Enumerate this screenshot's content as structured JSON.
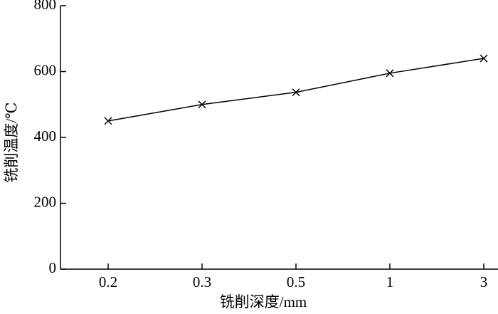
{
  "chart_data": {
    "type": "line",
    "x_label": "铣削深度/mm",
    "y_label": "铣削温度/℃",
    "categories": [
      "0.2",
      "0.3",
      "0.5",
      "1",
      "3"
    ],
    "values": [
      450,
      500,
      537,
      595,
      640
    ],
    "color": "#000000",
    "marker": "x",
    "ylim": [
      0,
      800
    ],
    "yticks": [
      0,
      200,
      400,
      600,
      800
    ],
    "grid": false
  }
}
